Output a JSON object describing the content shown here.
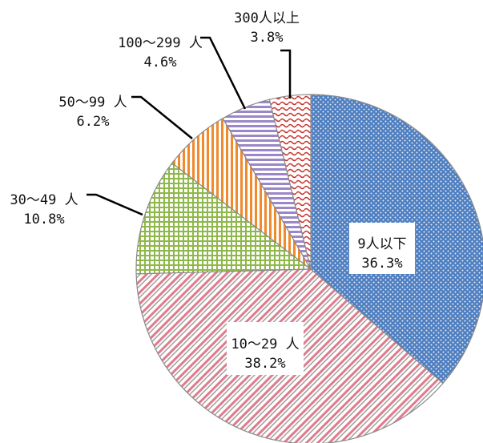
{
  "chart_data": {
    "type": "pie",
    "title": "",
    "slices": [
      {
        "label": "9人以下",
        "value": 36.3,
        "value_label": "36.3%",
        "color": "#4f7fc0",
        "pattern": "dots"
      },
      {
        "label": "10～29 人",
        "value": 38.2,
        "value_label": "38.2%",
        "color": "#e07a8c",
        "pattern": "diagonal-stripes"
      },
      {
        "label": "30～49 人",
        "value": 10.8,
        "value_label": "10.8%",
        "color": "#8fb84a",
        "pattern": "grid"
      },
      {
        "label": "50～99 人",
        "value": 6.2,
        "value_label": "6.2%",
        "color": "#f08a2c",
        "pattern": "vertical-stripes"
      },
      {
        "label": "100～299 人",
        "value": 4.6,
        "value_label": "4.6%",
        "color": "#9a86c8",
        "pattern": "horizontal-stripes"
      },
      {
        "label": "300人以上",
        "value": 3.8,
        "value_label": "3.8%",
        "color": "#c8302a",
        "pattern": "wave"
      }
    ],
    "legend": "none",
    "data_labels": "category-and-percent"
  }
}
